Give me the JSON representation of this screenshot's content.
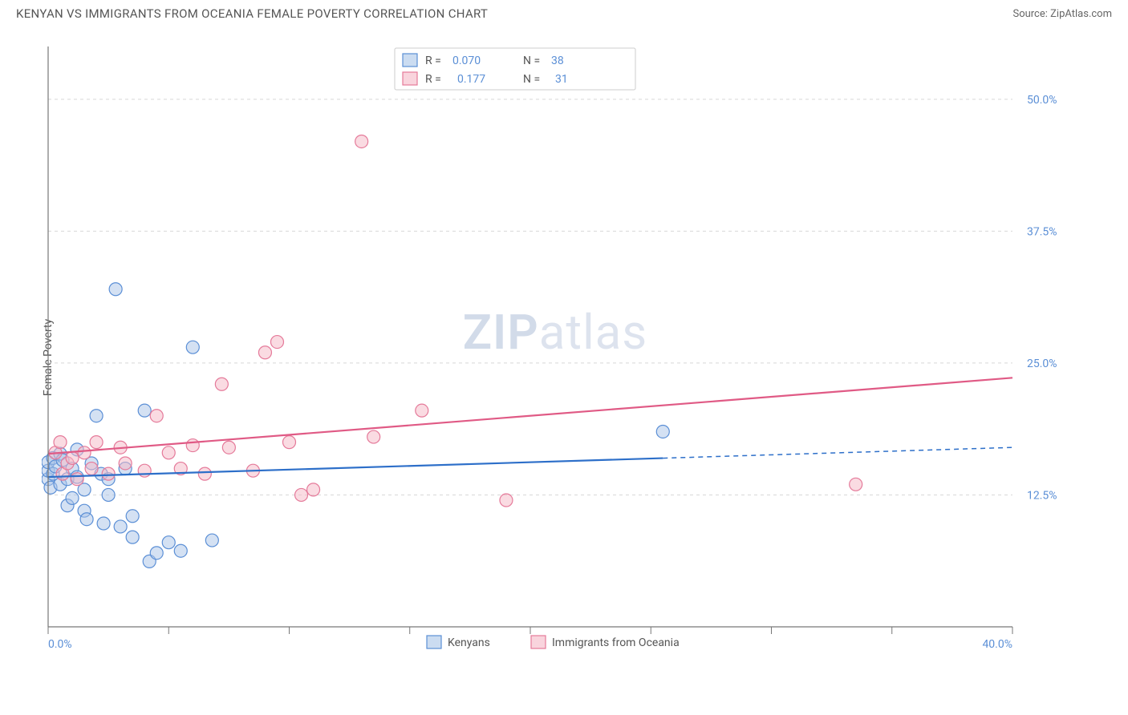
{
  "title": "KENYAN VS IMMIGRANTS FROM OCEANIA FEMALE POVERTY CORRELATION CHART",
  "source": "Source: ZipAtlas.com",
  "watermark_zip": "ZIP",
  "watermark_atlas": "atlas",
  "y_axis_label": "Female Poverty",
  "chart": {
    "type": "scatter",
    "xlim": [
      0,
      40
    ],
    "ylim": [
      0,
      55
    ],
    "x_ticks": [
      0,
      5,
      10,
      15,
      20,
      25,
      30,
      35,
      40
    ],
    "x_tick_labels": {
      "0": "0.0%",
      "40": "40.0%"
    },
    "y_grid": [
      12.5,
      25.0,
      37.5,
      50.0
    ],
    "y_tick_labels": [
      "12.5%",
      "25.0%",
      "37.5%",
      "50.0%"
    ],
    "background_color": "#ffffff",
    "grid_color": "#d8d8d8",
    "marker_radius": 8,
    "series": [
      {
        "name": "Kenyans",
        "color_fill": "#a9c4e8",
        "color_stroke": "#5b8fd6",
        "r_value": "0.070",
        "n_value": "38",
        "trend": {
          "x0": 0,
          "y0": 14.2,
          "x_solid_end": 25.5,
          "x1": 40,
          "y1": 17.0,
          "line_color": "#2d6fc9"
        },
        "points": [
          [
            0.0,
            14.0
          ],
          [
            0.0,
            14.8
          ],
          [
            0.0,
            15.6
          ],
          [
            0.1,
            13.2
          ],
          [
            0.2,
            16.0
          ],
          [
            0.2,
            14.5
          ],
          [
            0.3,
            15.2
          ],
          [
            0.5,
            16.4
          ],
          [
            0.5,
            13.5
          ],
          [
            0.6,
            15.8
          ],
          [
            0.8,
            14.0
          ],
          [
            0.8,
            11.5
          ],
          [
            1.0,
            12.2
          ],
          [
            1.0,
            15.0
          ],
          [
            1.2,
            16.8
          ],
          [
            1.2,
            14.2
          ],
          [
            1.5,
            11.0
          ],
          [
            1.5,
            13.0
          ],
          [
            1.6,
            10.2
          ],
          [
            1.8,
            15.5
          ],
          [
            2.0,
            20.0
          ],
          [
            2.2,
            14.5
          ],
          [
            2.3,
            9.8
          ],
          [
            2.5,
            12.5
          ],
          [
            2.5,
            14.0
          ],
          [
            2.8,
            32.0
          ],
          [
            3.0,
            9.5
          ],
          [
            3.2,
            15.0
          ],
          [
            3.5,
            8.5
          ],
          [
            3.5,
            10.5
          ],
          [
            4.0,
            20.5
          ],
          [
            4.2,
            6.2
          ],
          [
            4.5,
            7.0
          ],
          [
            5.0,
            8.0
          ],
          [
            5.5,
            7.2
          ],
          [
            6.0,
            26.5
          ],
          [
            6.8,
            8.2
          ],
          [
            25.5,
            18.5
          ]
        ]
      },
      {
        "name": "Immigrants from Oceania",
        "color_fill": "#f5b8c6",
        "color_stroke": "#e57a9a",
        "r_value": "0.177",
        "n_value": "31",
        "trend": {
          "x0": 0,
          "y0": 16.4,
          "x_solid_end": 40,
          "x1": 40,
          "y1": 23.6,
          "line_color": "#e05a85"
        },
        "points": [
          [
            0.3,
            16.5
          ],
          [
            0.5,
            17.5
          ],
          [
            0.6,
            14.5
          ],
          [
            0.8,
            15.5
          ],
          [
            1.0,
            16.0
          ],
          [
            1.2,
            14.0
          ],
          [
            1.5,
            16.5
          ],
          [
            1.8,
            15.0
          ],
          [
            2.0,
            17.5
          ],
          [
            2.5,
            14.5
          ],
          [
            3.0,
            17.0
          ],
          [
            3.2,
            15.5
          ],
          [
            4.0,
            14.8
          ],
          [
            4.5,
            20.0
          ],
          [
            5.0,
            16.5
          ],
          [
            5.5,
            15.0
          ],
          [
            6.0,
            17.2
          ],
          [
            6.5,
            14.5
          ],
          [
            7.2,
            23.0
          ],
          [
            7.5,
            17.0
          ],
          [
            8.5,
            14.8
          ],
          [
            9.0,
            26.0
          ],
          [
            9.5,
            27.0
          ],
          [
            10.0,
            17.5
          ],
          [
            10.5,
            12.5
          ],
          [
            11.0,
            13.0
          ],
          [
            13.0,
            46.0
          ],
          [
            13.5,
            18.0
          ],
          [
            15.5,
            20.5
          ],
          [
            19.0,
            12.0
          ],
          [
            33.5,
            13.5
          ]
        ]
      }
    ],
    "legend_top": {
      "r_label": "R =",
      "n_label": "N ="
    },
    "legend_bottom": {
      "items": [
        "Kenyans",
        "Immigrants from Oceania"
      ]
    }
  }
}
